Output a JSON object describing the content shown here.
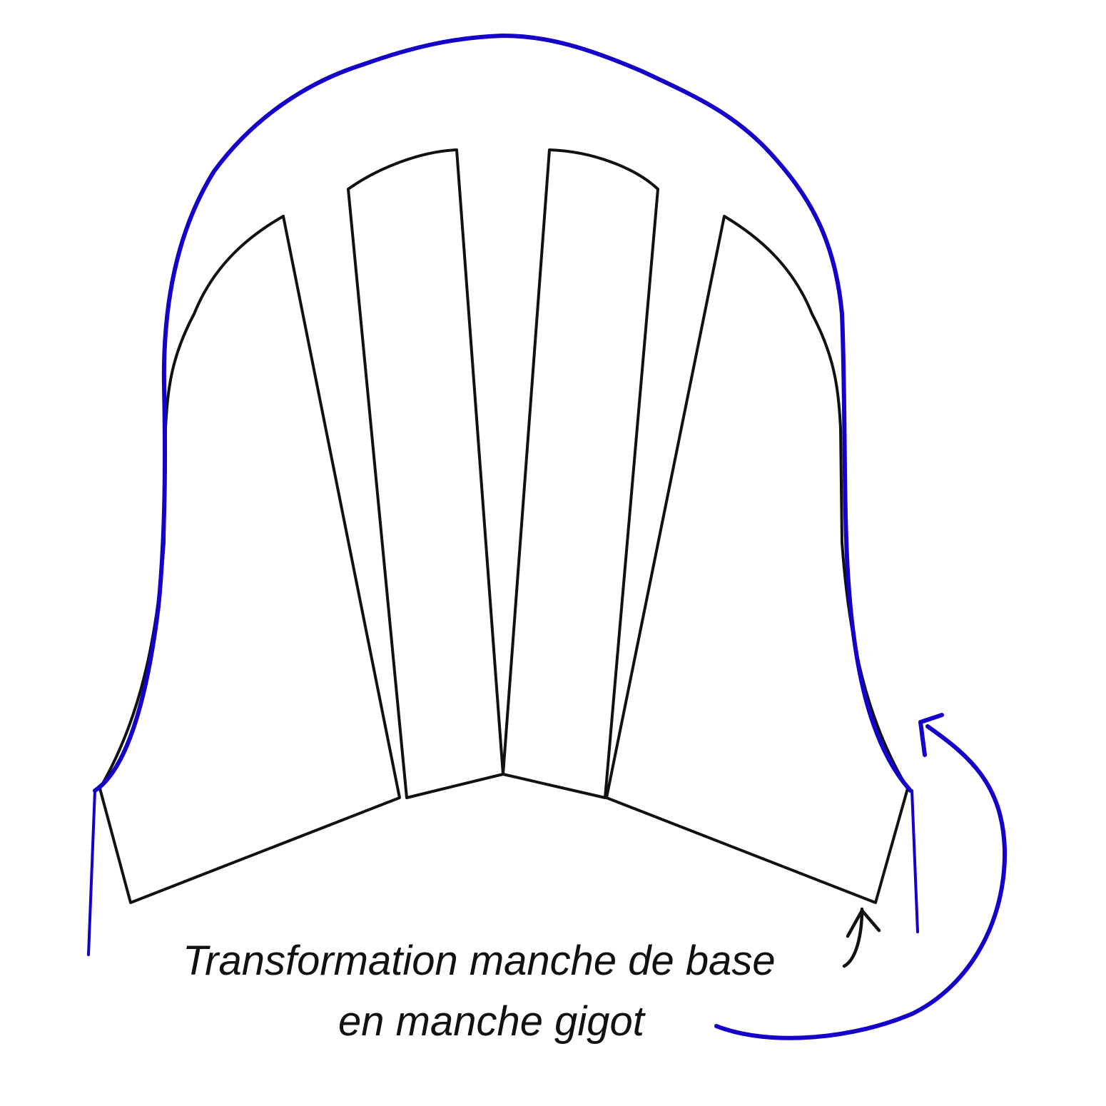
{
  "caption": {
    "line1": "Transformation manche de base",
    "line2": "en manche gigot"
  },
  "colors": {
    "pattern_outline": "#111111",
    "gigot_outline": "#1400c8",
    "text": "#111111",
    "background": "#ffffff"
  },
  "icons": {
    "small_arrow": "curved-arrow-up-icon",
    "large_arrow": "curved-arrow-icon"
  }
}
